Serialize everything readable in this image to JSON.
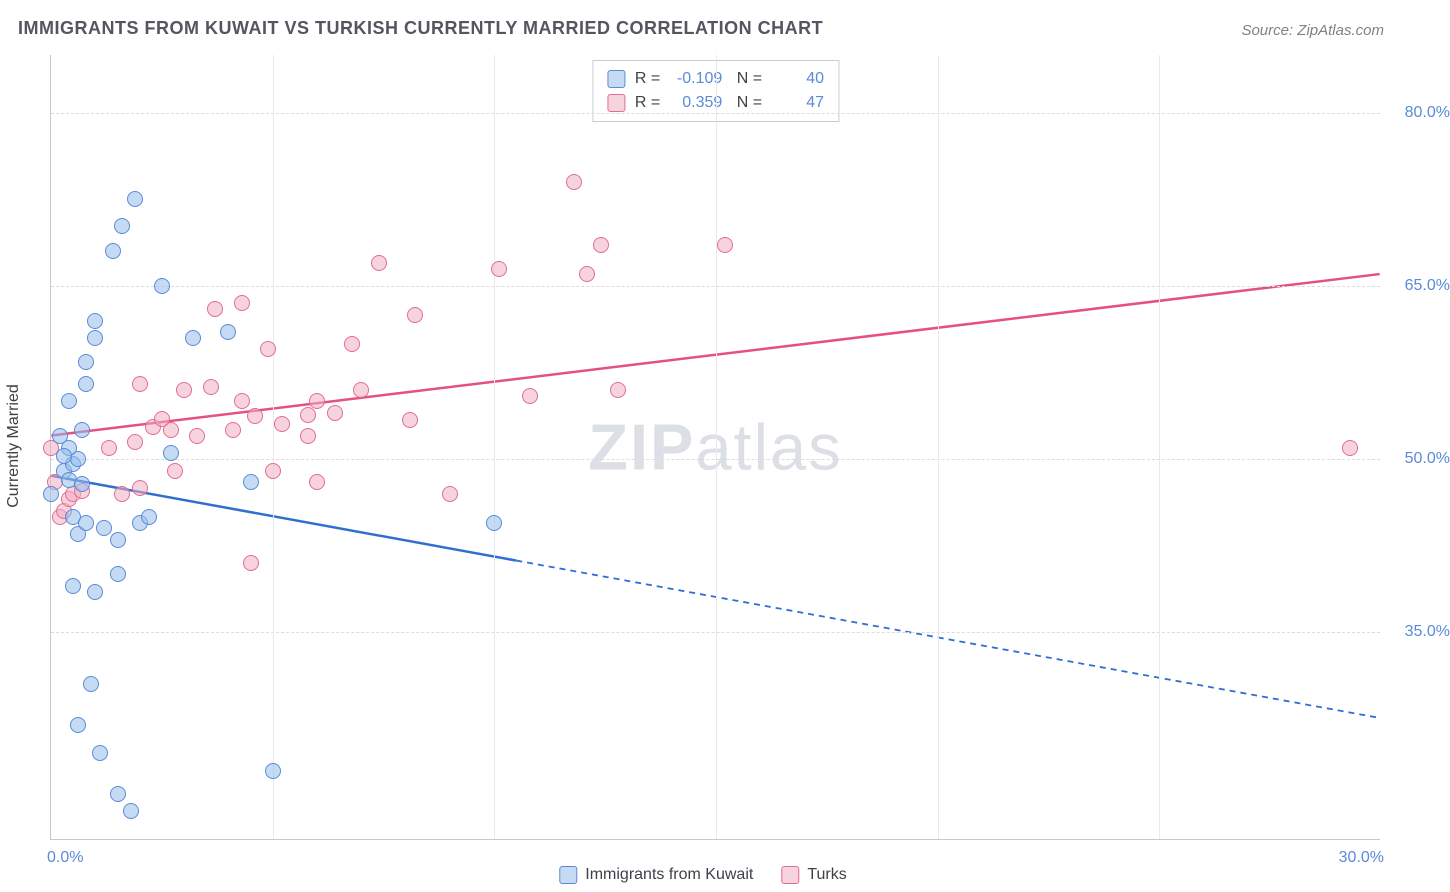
{
  "title": "IMMIGRANTS FROM KUWAIT VS TURKISH CURRENTLY MARRIED CORRELATION CHART",
  "source": "Source: ZipAtlas.com",
  "watermark_a": "ZIP",
  "watermark_b": "atlas",
  "ylabel": "Currently Married",
  "colors": {
    "blue_fill": "rgba(150,190,235,0.55)",
    "blue_stroke": "#5a8ad8",
    "pink_fill": "rgba(240,175,195,0.55)",
    "pink_stroke": "#e06d94",
    "blue_line": "#2f6fd0",
    "pink_line": "#e5517f",
    "grid": "#dcdce0",
    "text_axis": "#5a8ad8"
  },
  "axes": {
    "x_min": 0.0,
    "x_max": 30.0,
    "y_min": 17.0,
    "y_max": 85.0,
    "y_ticks": [
      35.0,
      50.0,
      65.0,
      80.0
    ],
    "y_tick_labels": [
      "35.0%",
      "50.0%",
      "65.0%",
      "80.0%"
    ],
    "x_ticks": [
      0.0,
      30.0
    ],
    "x_tick_labels": [
      "0.0%",
      "30.0%"
    ],
    "v_grid_x": [
      5,
      10,
      15,
      20,
      25
    ]
  },
  "series": {
    "blue": {
      "label": "Immigrants from Kuwait",
      "R": "-0.109",
      "N": "40",
      "trend": {
        "x1": 0.0,
        "y1": 48.5,
        "x2": 30.0,
        "y2": 27.5,
        "solid_until_x": 10.5
      },
      "points": [
        [
          0.3,
          49.0
        ],
        [
          0.4,
          48.2
        ],
        [
          0.5,
          49.6
        ],
        [
          0.6,
          50.0
        ],
        [
          0.7,
          47.8
        ],
        [
          0.7,
          52.5
        ],
        [
          0.8,
          56.5
        ],
        [
          0.8,
          58.4
        ],
        [
          1.0,
          60.5
        ],
        [
          1.0,
          62.0
        ],
        [
          1.4,
          68.0
        ],
        [
          1.6,
          70.2
        ],
        [
          1.9,
          72.5
        ],
        [
          2.5,
          65.0
        ],
        [
          0.5,
          45.0
        ],
        [
          0.6,
          43.5
        ],
        [
          0.8,
          44.5
        ],
        [
          1.2,
          44.0
        ],
        [
          1.5,
          43.0
        ],
        [
          2.0,
          44.5
        ],
        [
          0.5,
          39.0
        ],
        [
          1.0,
          38.5
        ],
        [
          1.5,
          40.0
        ],
        [
          0.9,
          30.5
        ],
        [
          0.6,
          27.0
        ],
        [
          1.1,
          24.5
        ],
        [
          1.5,
          21.0
        ],
        [
          1.8,
          19.5
        ],
        [
          5.0,
          23.0
        ],
        [
          4.5,
          48.0
        ],
        [
          2.2,
          45.0
        ],
        [
          2.7,
          50.5
        ],
        [
          3.2,
          60.5
        ],
        [
          4.0,
          61.0
        ],
        [
          10.0,
          44.5
        ],
        [
          0.4,
          51.0
        ],
        [
          0.3,
          50.3
        ],
        [
          0.4,
          55.0
        ],
        [
          0.2,
          52.0
        ],
        [
          0.0,
          47.0
        ]
      ]
    },
    "pink": {
      "label": "Turks",
      "R": "0.359",
      "N": "47",
      "trend": {
        "x1": 0.0,
        "y1": 52.0,
        "x2": 30.0,
        "y2": 66.0,
        "solid_until_x": 30.0
      },
      "points": [
        [
          0.2,
          45.0
        ],
        [
          0.3,
          45.5
        ],
        [
          0.4,
          46.5
        ],
        [
          0.5,
          47.0
        ],
        [
          0.7,
          47.2
        ],
        [
          1.6,
          47.0
        ],
        [
          2.0,
          47.5
        ],
        [
          2.8,
          49.0
        ],
        [
          5.0,
          49.0
        ],
        [
          1.3,
          51.0
        ],
        [
          1.9,
          51.5
        ],
        [
          2.3,
          52.8
        ],
        [
          2.7,
          52.5
        ],
        [
          3.3,
          52.0
        ],
        [
          4.1,
          52.5
        ],
        [
          4.6,
          53.7
        ],
        [
          5.2,
          53.0
        ],
        [
          5.8,
          53.8
        ],
        [
          6.0,
          55.0
        ],
        [
          6.4,
          54.0
        ],
        [
          7.0,
          56.0
        ],
        [
          8.1,
          53.4
        ],
        [
          3.0,
          56.0
        ],
        [
          3.6,
          56.2
        ],
        [
          2.5,
          53.5
        ],
        [
          4.3,
          55.0
        ],
        [
          2.0,
          56.5
        ],
        [
          3.7,
          63.0
        ],
        [
          4.3,
          63.5
        ],
        [
          4.9,
          59.5
        ],
        [
          5.8,
          52.0
        ],
        [
          6.8,
          60.0
        ],
        [
          7.4,
          67.0
        ],
        [
          8.2,
          62.5
        ],
        [
          10.1,
          66.5
        ],
        [
          10.8,
          55.5
        ],
        [
          11.8,
          74.0
        ],
        [
          12.1,
          66.0
        ],
        [
          12.4,
          68.5
        ],
        [
          15.2,
          68.5
        ],
        [
          12.8,
          56.0
        ],
        [
          29.3,
          51.0
        ],
        [
          4.5,
          41.0
        ],
        [
          6.0,
          48.0
        ],
        [
          9.0,
          47.0
        ],
        [
          0.1,
          48.0
        ],
        [
          0.0,
          51.0
        ]
      ]
    }
  }
}
